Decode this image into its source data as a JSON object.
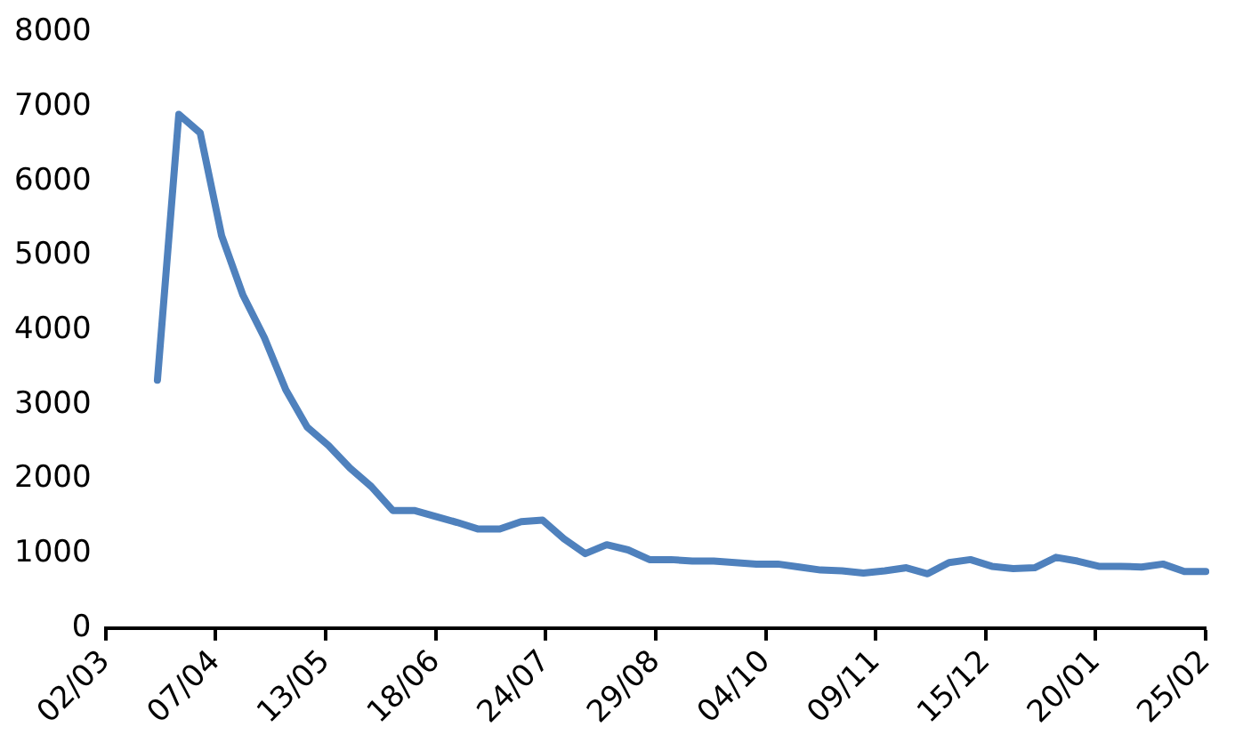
{
  "chart_data": {
    "type": "line",
    "categories": [
      "02/03",
      null,
      null,
      null,
      null,
      null,
      null,
      null,
      null,
      null,
      null,
      null,
      null,
      null,
      null,
      null,
      null,
      null,
      null,
      null,
      null,
      null,
      null,
      null,
      null,
      null,
      null,
      null,
      null,
      null,
      null,
      null,
      null,
      null,
      null,
      null,
      "07/04",
      null,
      null,
      null,
      null,
      null,
      null,
      null,
      null,
      null,
      null,
      null,
      null,
      null,
      null,
      null,
      null,
      null,
      null,
      null,
      null,
      null,
      null,
      null,
      null,
      null,
      null,
      null,
      null,
      null,
      null,
      null,
      null,
      null,
      null,
      null,
      "13/05",
      null,
      null,
      null,
      null,
      null,
      null,
      null,
      null,
      null,
      null,
      null,
      null,
      null,
      null,
      null,
      null,
      null,
      null,
      null,
      null,
      null,
      null,
      null,
      null,
      null,
      null,
      null,
      null,
      null,
      null,
      null,
      null,
      null,
      null,
      null,
      "18/06",
      null,
      null,
      null,
      null,
      null,
      null,
      null,
      null,
      null,
      null,
      null,
      null,
      null,
      null,
      null,
      null,
      null,
      null,
      null,
      null,
      null,
      null,
      null,
      null,
      null,
      null,
      null,
      null,
      null,
      null,
      null,
      null,
      null,
      null,
      null,
      "24/07",
      null,
      null,
      null,
      null,
      null,
      null,
      null,
      null,
      null,
      null,
      null,
      null,
      null,
      null,
      null,
      null,
      null,
      null,
      null,
      null,
      null,
      null,
      null,
      null,
      null,
      null,
      null,
      null,
      null,
      null,
      null,
      null,
      null,
      null,
      null,
      "29/08",
      null,
      null,
      null,
      null,
      null,
      null,
      null,
      null,
      null,
      null,
      null,
      null,
      null,
      null,
      null,
      null,
      null,
      null,
      null,
      null,
      null,
      null,
      null,
      null,
      null,
      null,
      null,
      null,
      null,
      null,
      null,
      null,
      null,
      null,
      null,
      "04/10",
      null,
      null,
      null,
      null,
      null,
      null,
      null,
      null,
      null,
      null,
      null,
      null,
      null,
      null,
      null,
      null,
      null,
      null,
      null,
      null,
      null,
      null,
      null,
      null,
      null,
      null,
      null,
      null,
      null,
      null,
      null,
      null,
      null,
      null,
      null,
      "09/11",
      null,
      null,
      null,
      null,
      null,
      null,
      null,
      null,
      null,
      null,
      null,
      null,
      null,
      null,
      null,
      null,
      null,
      null,
      null,
      null,
      null,
      null,
      null,
      null,
      null,
      null,
      null,
      null,
      null,
      null,
      null,
      null,
      null,
      null,
      null,
      "15/12",
      null,
      null,
      null,
      null,
      null,
      null,
      null,
      null,
      null,
      null,
      null,
      null,
      null,
      null,
      null,
      null,
      null,
      null,
      null,
      null,
      null,
      null,
      null,
      null,
      null,
      null,
      null,
      null,
      null,
      null,
      null,
      null,
      null,
      null,
      null,
      "20/01",
      null,
      null,
      null,
      null,
      null,
      null,
      null,
      null,
      null,
      null,
      null,
      null,
      null,
      null,
      null,
      null,
      null,
      null,
      null,
      null,
      null,
      null,
      null,
      null,
      null,
      null,
      null,
      null,
      null,
      null,
      null,
      null,
      null,
      null,
      null,
      "25/02"
    ],
    "series": [
      {
        "color": "#4f81bd",
        "values": [
          null,
          null,
          null,
          null,
          null,
          null,
          null,
          null,
          null,
          null,
          null,
          null,
          null,
          null,
          null,
          null,
          null,
          3330,
          null,
          null,
          null,
          null,
          null,
          null,
          6900,
          null,
          null,
          null,
          null,
          null,
          null,
          6650,
          null,
          null,
          null,
          null,
          null,
          null,
          5270,
          null,
          null,
          null,
          null,
          null,
          null,
          4470,
          null,
          null,
          null,
          null,
          null,
          null,
          3900,
          null,
          null,
          null,
          null,
          null,
          null,
          3200,
          null,
          null,
          null,
          null,
          null,
          null,
          2700,
          null,
          null,
          null,
          null,
          null,
          null,
          2450,
          null,
          null,
          null,
          null,
          null,
          null,
          2150,
          null,
          null,
          null,
          null,
          null,
          null,
          1900,
          null,
          null,
          null,
          null,
          null,
          null,
          1580,
          null,
          null,
          null,
          null,
          null,
          null,
          1580,
          null,
          null,
          null,
          null,
          null,
          null,
          1500,
          null,
          null,
          null,
          null,
          null,
          null,
          1420,
          null,
          null,
          null,
          null,
          null,
          null,
          1330,
          null,
          null,
          null,
          null,
          null,
          null,
          1330,
          null,
          null,
          null,
          null,
          null,
          null,
          1430,
          null,
          null,
          null,
          null,
          null,
          null,
          1450,
          null,
          null,
          null,
          null,
          null,
          null,
          1200,
          null,
          null,
          null,
          null,
          null,
          null,
          1000,
          null,
          null,
          null,
          null,
          null,
          null,
          1120,
          null,
          null,
          null,
          null,
          null,
          null,
          1050,
          null,
          null,
          null,
          null,
          null,
          null,
          920,
          null,
          null,
          null,
          null,
          null,
          null,
          920,
          null,
          null,
          null,
          null,
          null,
          null,
          900,
          null,
          null,
          null,
          null,
          null,
          null,
          900,
          null,
          null,
          null,
          null,
          null,
          null,
          880,
          null,
          null,
          null,
          null,
          null,
          null,
          860,
          null,
          null,
          null,
          null,
          null,
          null,
          860,
          null,
          null,
          null,
          null,
          null,
          null,
          820,
          null,
          null,
          null,
          null,
          null,
          null,
          780,
          null,
          null,
          null,
          null,
          null,
          null,
          770,
          null,
          null,
          null,
          null,
          null,
          null,
          740,
          null,
          null,
          null,
          null,
          null,
          null,
          770,
          null,
          null,
          null,
          null,
          null,
          null,
          810,
          null,
          null,
          null,
          null,
          null,
          null,
          730,
          null,
          null,
          null,
          null,
          null,
          null,
          880,
          null,
          null,
          null,
          null,
          null,
          null,
          920,
          null,
          null,
          null,
          null,
          null,
          null,
          830,
          null,
          null,
          null,
          null,
          null,
          null,
          800,
          null,
          null,
          null,
          null,
          null,
          null,
          810,
          null,
          null,
          null,
          null,
          null,
          null,
          950,
          null,
          null,
          null,
          null,
          null,
          null,
          900,
          null,
          null,
          null,
          null,
          null,
          null,
          830,
          null,
          null,
          null,
          null,
          null,
          null,
          830,
          null,
          null,
          null,
          null,
          null,
          null,
          820,
          null,
          null,
          null,
          null,
          null,
          null,
          860,
          null,
          null,
          null,
          null,
          null,
          null,
          760,
          null,
          null,
          null,
          null,
          null,
          null,
          760
        ]
      }
    ],
    "ylim": [
      0,
      8000
    ],
    "yticks": [
      0,
      1000,
      2000,
      3000,
      4000,
      5000,
      6000,
      7000,
      8000
    ],
    "grid": false,
    "legend": false,
    "marker": "none",
    "line_style": "solid"
  }
}
